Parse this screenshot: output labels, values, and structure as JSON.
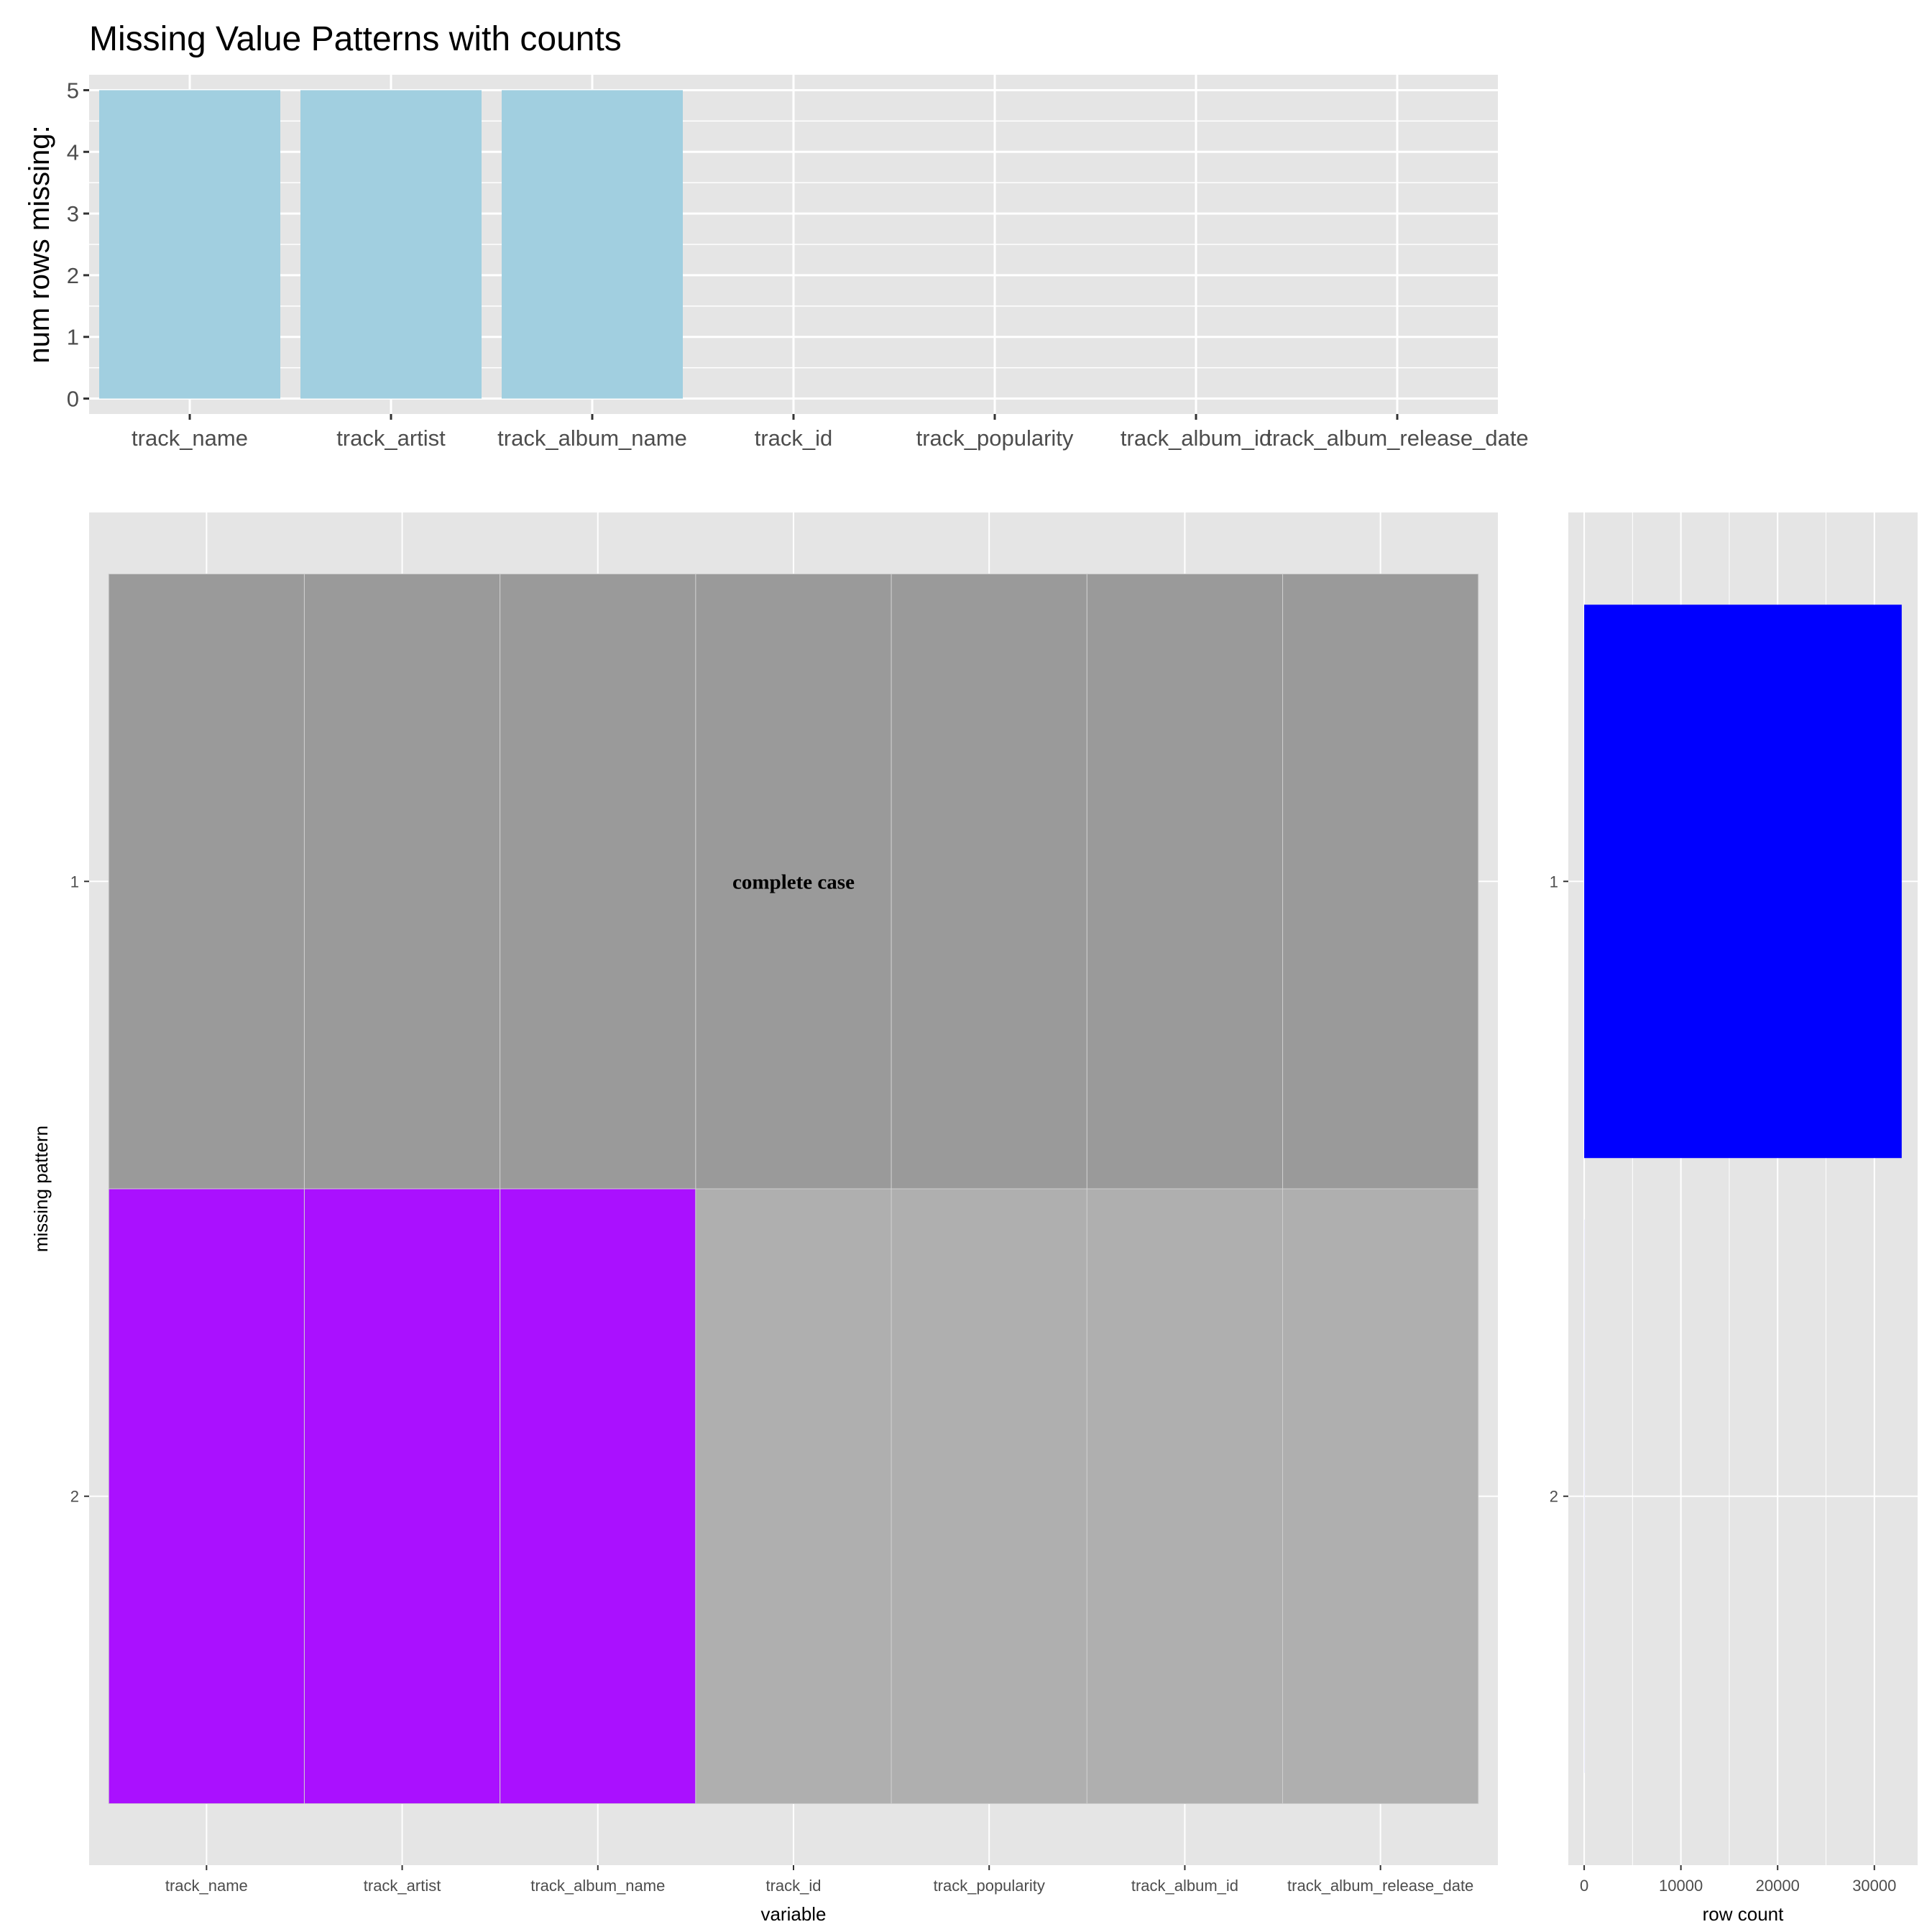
{
  "chart_data": [
    {
      "type": "bar",
      "title": "Missing Value Patterns with counts",
      "xlabel": "",
      "ylabel": "num rows missing:",
      "categories": [
        "track_name",
        "track_artist",
        "track_album_name",
        "track_id",
        "track_popularity",
        "track_album_id",
        "track_album_release_date"
      ],
      "values": [
        5,
        5,
        5,
        0,
        0,
        0,
        0
      ],
      "ylim": [
        -0.25,
        5.25
      ],
      "yticks": [
        0,
        1,
        2,
        3,
        4,
        5
      ],
      "grid": true,
      "colors": {
        "bar": "#a1cfe0",
        "panel": "#e5e5e5",
        "grid": "#ffffff"
      }
    },
    {
      "type": "heatmap",
      "xlabel": "variable",
      "ylabel": "missing pattern",
      "x": [
        "track_name",
        "track_artist",
        "track_album_name",
        "track_id",
        "track_popularity",
        "track_album_id",
        "track_album_release_date"
      ],
      "y": [
        "1",
        "2"
      ],
      "z": [
        [
          0,
          0,
          0,
          0,
          0,
          0,
          0
        ],
        [
          1,
          1,
          1,
          0,
          0,
          0,
          0
        ]
      ],
      "complete_case_pattern": "1",
      "annotation": "complete case",
      "grid": true,
      "colors": {
        "complete_case": "#9a9a9a",
        "missing": "#aa10ff",
        "not_missing": "#afafaf",
        "panel": "#e5e5e5",
        "grid": "#ffffff"
      }
    },
    {
      "type": "bar",
      "orientation": "horizontal",
      "xlabel": "row count",
      "ylabel": "",
      "categories": [
        "1",
        "2"
      ],
      "values": [
        32828,
        5
      ],
      "xlim": [
        -1641,
        34474
      ],
      "xticks": [
        0,
        10000,
        20000,
        30000
      ],
      "grid": true,
      "colors": {
        "bar": "#0000ff",
        "panel": "#e5e5e5",
        "grid": "#ffffff"
      }
    }
  ]
}
